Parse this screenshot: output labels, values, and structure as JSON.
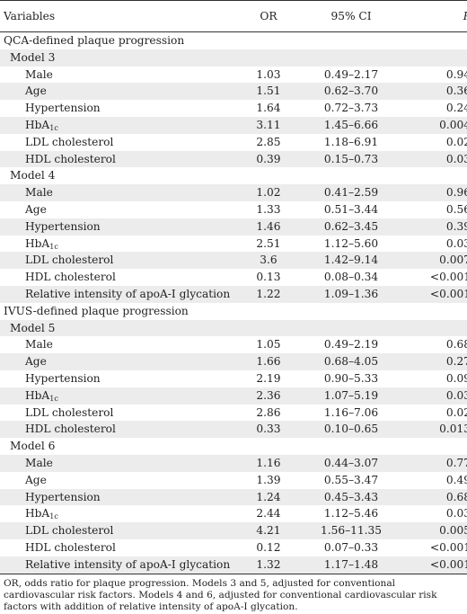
{
  "table": {
    "headers": [
      "Variables",
      "OR",
      "95% CI",
      "P"
    ],
    "rows": [
      {
        "kind": "section",
        "label": "QCA-defined plaque progression"
      },
      {
        "kind": "model",
        "label": "Model 3"
      },
      {
        "kind": "var",
        "label": "Male",
        "or": "1.03",
        "ci": "0.49–2.17",
        "p": "0.94"
      },
      {
        "kind": "var",
        "label": "Age",
        "or": "1.51",
        "ci": "0.62–3.70",
        "p": "0.36"
      },
      {
        "kind": "var",
        "label": "Hypertension",
        "or": "1.64",
        "ci": "0.72–3.73",
        "p": "0.24"
      },
      {
        "kind": "var",
        "label": "HbA",
        "sub": "1c",
        "or": "3.11",
        "ci": "1.45–6.66",
        "p": "0.004"
      },
      {
        "kind": "var",
        "label": "LDL cholesterol",
        "or": "2.85",
        "ci": "1.18–6.91",
        "p": "0.02"
      },
      {
        "kind": "var",
        "label": "HDL cholesterol",
        "or": "0.39",
        "ci": "0.15–0.73",
        "p": "0.03"
      },
      {
        "kind": "model",
        "label": "Model 4"
      },
      {
        "kind": "var",
        "label": "Male",
        "or": "1.02",
        "ci": "0.41–2.59",
        "p": "0.96"
      },
      {
        "kind": "var",
        "label": "Age",
        "or": "1.33",
        "ci": "0.51–3.44",
        "p": "0.56"
      },
      {
        "kind": "var",
        "label": "Hypertension",
        "or": "1.46",
        "ci": "0.62–3.45",
        "p": "0.39"
      },
      {
        "kind": "var",
        "label": "HbA",
        "sub": "1c",
        "or": "2.51",
        "ci": "1.12–5.60",
        "p": "0.03"
      },
      {
        "kind": "var",
        "label": "LDL cholesterol",
        "or": "3.6",
        "ci": "1.42–9.14",
        "p": "0.007"
      },
      {
        "kind": "var",
        "label": "HDL cholesterol",
        "or": "0.13",
        "ci": "0.08–0.34",
        "p": "<0.001"
      },
      {
        "kind": "var",
        "label": "Relative intensity of apoA-I glycation",
        "or": "1.22",
        "ci": "1.09–1.36",
        "p": "<0.001"
      },
      {
        "kind": "section",
        "label": "IVUS-defined plaque progression"
      },
      {
        "kind": "model",
        "label": "Model 5"
      },
      {
        "kind": "var",
        "label": "Male",
        "or": "1.05",
        "ci": "0.49–2.19",
        "p": "0.68"
      },
      {
        "kind": "var",
        "label": "Age",
        "or": "1.66",
        "ci": "0.68–4.05",
        "p": "0.27"
      },
      {
        "kind": "var",
        "label": "Hypertension",
        "or": "2.19",
        "ci": "0.90–5.33",
        "p": "0.09"
      },
      {
        "kind": "var",
        "label": "HbA",
        "sub": "1c",
        "or": "2.36",
        "ci": "1.07–5.19",
        "p": "0.03"
      },
      {
        "kind": "var",
        "label": "LDL cholesterol",
        "or": "2.86",
        "ci": "1.16–7.06",
        "p": "0.02"
      },
      {
        "kind": "var",
        "label": "HDL cholesterol",
        "or": "0.33",
        "ci": "0.10–0.65",
        "p": "0.013"
      },
      {
        "kind": "model",
        "label": "Model 6"
      },
      {
        "kind": "var",
        "label": "Male",
        "or": "1.16",
        "ci": "0.44–3.07",
        "p": "0.77"
      },
      {
        "kind": "var",
        "label": "Age",
        "or": "1.39",
        "ci": "0.55–3.47",
        "p": "0.49"
      },
      {
        "kind": "var",
        "label": "Hypertension",
        "or": "1.24",
        "ci": "0.45–3.43",
        "p": "0.68"
      },
      {
        "kind": "var",
        "label": "HbA",
        "sub": "1c",
        "or": "2.44",
        "ci": "1.12–5.46",
        "p": "0.03"
      },
      {
        "kind": "var",
        "label": "LDL cholesterol",
        "or": "4.21",
        "ci": "1.56–11.35",
        "p": "0.005"
      },
      {
        "kind": "var",
        "label": "HDL cholesterol",
        "or": "0.12",
        "ci": "0.07–0.33",
        "p": "<0.001"
      },
      {
        "kind": "var",
        "label": "Relative intensity of apoA-I glycation",
        "or": "1.32",
        "ci": "1.17–1.48",
        "p": "<0.001"
      }
    ]
  },
  "footnote": "OR, odds ratio for plaque progression. Models 3 and 5, adjusted for conventional cardiovascular risk factors. Models 4 and 6, adjusted for conventional cardiovascular risk factors with addition of relative intensity of apoA-I glycation."
}
